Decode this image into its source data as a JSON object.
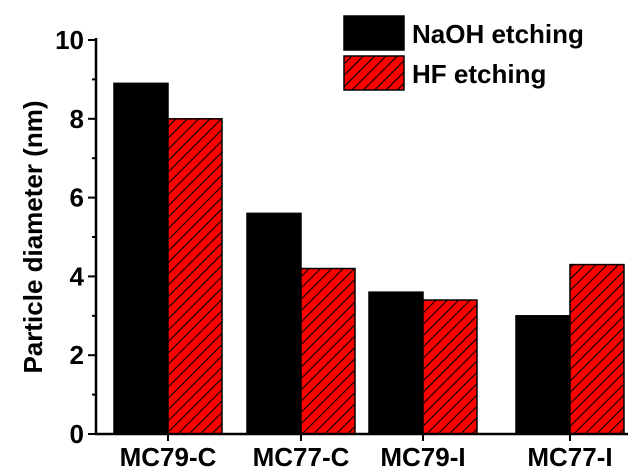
{
  "chart_data": {
    "type": "bar",
    "title": "",
    "xlabel": "",
    "ylabel": "Particle diameter (nm)",
    "categories": [
      "MC79-C",
      "MC77-C",
      "MC79-I",
      "MC77-I"
    ],
    "series": [
      {
        "name": "NaOH etching",
        "values": [
          8.9,
          5.6,
          3.6,
          3.0
        ],
        "color": "#000000",
        "pattern": "solid"
      },
      {
        "name": "HF etching",
        "values": [
          8.0,
          4.2,
          3.4,
          4.3
        ],
        "color": "#ff0000",
        "pattern": "diagonal-hatch"
      }
    ],
    "ylim": [
      0,
      10
    ],
    "yticks": [
      "0",
      "2",
      "4",
      "6",
      "8",
      "10"
    ],
    "grid": false,
    "legend": "top-right"
  }
}
